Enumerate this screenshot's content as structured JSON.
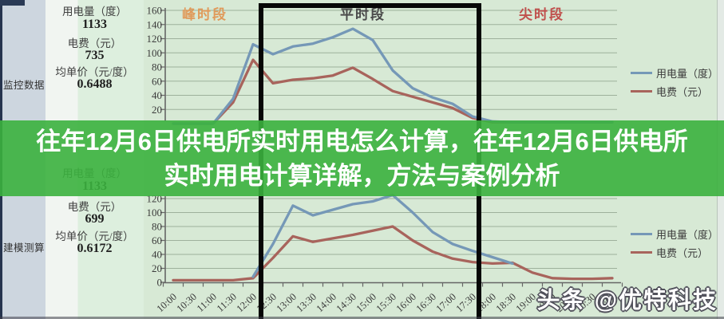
{
  "page": {
    "kind": "article-header over electricity-usage charts"
  },
  "overlay": {
    "title_line1": "往年12月6日供电所实时用电怎么计算，往年12月6日供电所",
    "title_line2": "实时用电计算详解，方法与案例分析",
    "background_color": "#3bb13e",
    "text_color": "#ffffff"
  },
  "watermark": {
    "text": "头条 @优特科技"
  },
  "panels": [
    {
      "name": "监控数据",
      "rows": [
        {
          "label": "用电量（度）",
          "value": "1133"
        },
        {
          "label": "电费（元）",
          "value": "735"
        },
        {
          "label": "均单价（元/度）",
          "value": "0.6488"
        }
      ]
    },
    {
      "name": "建模测算",
      "rows": [
        {
          "label": "用电量（度）",
          "value": "1133"
        },
        {
          "label": "电费（元）",
          "value": "699"
        },
        {
          "label": "均单价（元/度）",
          "value": "0.6172"
        }
      ]
    }
  ],
  "period_labels": [
    {
      "text": "峰时段",
      "color": "#e09a5a"
    },
    {
      "text": "平时段",
      "color": "#4a4a4a"
    },
    {
      "text": "尖时段",
      "color": "#c0504d"
    }
  ],
  "highlight_region": {
    "label": "平时段",
    "from": "12:00",
    "to": "18:00",
    "border_color": "#070707"
  },
  "legend": [
    {
      "label": "用电量（度）",
      "color": "#7598b7"
    },
    {
      "label": "电费（元）",
      "color": "#a8645c"
    }
  ],
  "colors": {
    "chart_background": "#d7e9d5",
    "gridline": "#9eb19c",
    "usage_line": "#7598b7",
    "cost_line": "#a8645c",
    "overlay_green": "#3bb13e"
  },
  "chart_data": [
    {
      "type": "line",
      "name": "监控数据",
      "x": [
        "10:00",
        "10:30",
        "11:00",
        "11:30",
        "12:00",
        "12:30",
        "13:00",
        "13:30",
        "14:00",
        "14:30",
        "15:00",
        "15:30",
        "16:00",
        "16:30",
        "17:00",
        "17:30",
        "18:00",
        "18:30",
        "19:00",
        "19:30",
        "20:00",
        "20:30",
        "21:00"
      ],
      "ylim": [
        0,
        160
      ],
      "ytick_step": 20,
      "grid": true,
      "x_labels_visible": false,
      "legend_position": "right",
      "series": [
        {
          "name": "用电量（度）",
          "color": "#7598b7",
          "values": [
            0,
            0,
            0,
            35,
            112,
            98,
            109,
            113,
            122,
            134,
            118,
            75,
            50,
            37,
            28,
            10,
            3,
            2,
            2,
            2,
            2,
            2,
            2
          ]
        },
        {
          "name": "电费（元）",
          "color": "#a8645c",
          "values": [
            0,
            0,
            0,
            30,
            90,
            57,
            62,
            64,
            68,
            79,
            63,
            46,
            38,
            30,
            22,
            8,
            2,
            2,
            2,
            2,
            2,
            2,
            2
          ]
        }
      ]
    },
    {
      "type": "line",
      "name": "建模测算",
      "x": [
        "10:00",
        "10:30",
        "11:00",
        "11:30",
        "12:00",
        "12:30",
        "13:00",
        "13:30",
        "14:00",
        "14:30",
        "15:00",
        "15:30",
        "16:00",
        "16:30",
        "17:00",
        "17:30",
        "18:00",
        "18:30",
        "19:00",
        "19:30",
        "20:00",
        "20:30",
        "21:00"
      ],
      "ylim": [
        0,
        160
      ],
      "ytick_step": 20,
      "grid": true,
      "x_labels_visible": true,
      "legend_position": "right",
      "series": [
        {
          "name": "用电量（度）",
          "color": "#7598b7",
          "values": [
            null,
            null,
            null,
            null,
            8,
            55,
            110,
            96,
            104,
            112,
            116,
            125,
            100,
            72,
            55,
            45,
            36,
            27,
            null,
            null,
            null,
            null,
            null
          ]
        },
        {
          "name": "电费（元）",
          "color": "#a8645c",
          "values": [
            3,
            3,
            3,
            3,
            6,
            35,
            66,
            58,
            63,
            68,
            74,
            80,
            60,
            44,
            34,
            29,
            27,
            28,
            14,
            6,
            5,
            5,
            6
          ]
        }
      ]
    }
  ]
}
